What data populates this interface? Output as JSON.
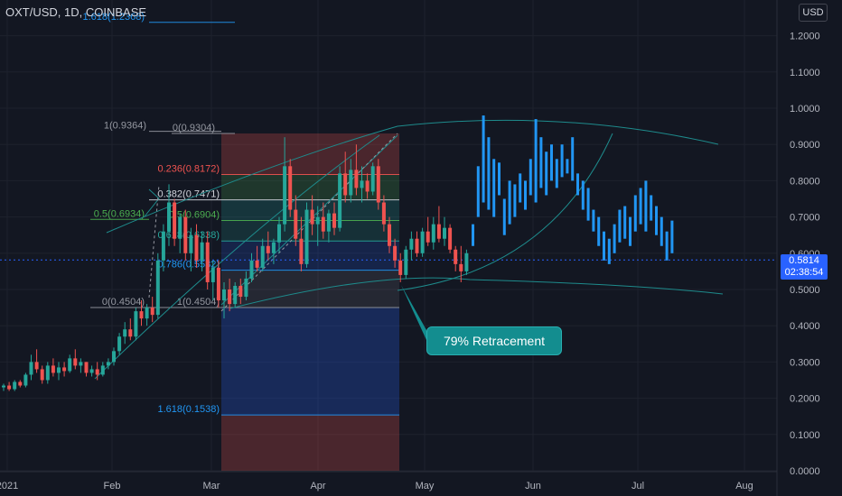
{
  "header": {
    "ticker": "OXT/USD, 1D, COINBASE",
    "currency_button": "USD"
  },
  "price_tag": {
    "price": "0.5814",
    "countdown": "02:38:54"
  },
  "callout": {
    "text": "79% Retracement"
  },
  "colors": {
    "background": "#131722",
    "up": "#26a69a",
    "down": "#ef5350",
    "projection": "#2196f3",
    "channel": "#1e8b8c",
    "grid": "#1e222d"
  },
  "chart_data": {
    "type": "candlestick",
    "title": "",
    "xlabel": "",
    "ylabel": "",
    "ylim": [
      0,
      1.25
    ],
    "y_ticks": [
      "1.2000",
      "1.1000",
      "1.0000",
      "0.9000",
      "0.8000",
      "0.7000",
      "0.6000",
      "0.5000",
      "0.4000",
      "0.3000",
      "0.2000",
      "0.1000",
      "0.0000"
    ],
    "x_ticks": [
      "2021",
      "Feb",
      "Mar",
      "Apr",
      "May",
      "Jun",
      "Jul",
      "Aug"
    ],
    "fib_retracement": {
      "levels": [
        {
          "label": "1(0.9364)",
          "value": 0.9364
        },
        {
          "label": "0(0.9304)",
          "value": 0.9304
        },
        {
          "label": "0.236(0.8172)",
          "value": 0.8172
        },
        {
          "label": "0.382(0.7471)",
          "value": 0.7471
        },
        {
          "label": "0.5(0.6934)",
          "value": 0.6934
        },
        {
          "label": "0.5(0.6904)",
          "value": 0.6904
        },
        {
          "label": "0.618(0.6338)",
          "value": 0.6338
        },
        {
          "label": "0.786(0.5532)",
          "value": 0.5532
        },
        {
          "label": "0(0.4504)",
          "value": 0.4504
        },
        {
          "label": "1(0.4504)",
          "value": 0.4504
        },
        {
          "label": "1.618(0.1538)",
          "value": 0.1538
        },
        {
          "label": "1.618(1.2368)",
          "value": 1.2368
        }
      ]
    },
    "candles": [
      [
        0.23,
        0.24,
        0.22,
        0.235
      ],
      [
        0.235,
        0.245,
        0.22,
        0.225
      ],
      [
        0.225,
        0.25,
        0.22,
        0.245
      ],
      [
        0.245,
        0.25,
        0.23,
        0.235
      ],
      [
        0.235,
        0.27,
        0.23,
        0.265
      ],
      [
        0.265,
        0.32,
        0.25,
        0.3
      ],
      [
        0.3,
        0.335,
        0.27,
        0.28
      ],
      [
        0.28,
        0.29,
        0.24,
        0.25
      ],
      [
        0.25,
        0.3,
        0.24,
        0.29
      ],
      [
        0.29,
        0.31,
        0.26,
        0.27
      ],
      [
        0.27,
        0.3,
        0.25,
        0.285
      ],
      [
        0.285,
        0.3,
        0.26,
        0.275
      ],
      [
        0.275,
        0.32,
        0.27,
        0.31
      ],
      [
        0.31,
        0.335,
        0.28,
        0.29
      ],
      [
        0.29,
        0.31,
        0.27,
        0.3
      ],
      [
        0.3,
        0.3,
        0.26,
        0.27
      ],
      [
        0.27,
        0.29,
        0.26,
        0.28
      ],
      [
        0.28,
        0.3,
        0.25,
        0.265
      ],
      [
        0.265,
        0.3,
        0.26,
        0.29
      ],
      [
        0.29,
        0.31,
        0.28,
        0.3
      ],
      [
        0.3,
        0.34,
        0.29,
        0.33
      ],
      [
        0.33,
        0.38,
        0.32,
        0.37
      ],
      [
        0.37,
        0.41,
        0.35,
        0.39
      ],
      [
        0.39,
        0.42,
        0.36,
        0.37
      ],
      [
        0.37,
        0.45,
        0.36,
        0.44
      ],
      [
        0.44,
        0.47,
        0.4,
        0.42
      ],
      [
        0.42,
        0.46,
        0.4,
        0.45
      ],
      [
        0.45,
        0.48,
        0.41,
        0.43
      ],
      [
        0.43,
        0.6,
        0.42,
        0.58
      ],
      [
        0.58,
        0.68,
        0.55,
        0.66
      ],
      [
        0.66,
        0.79,
        0.62,
        0.74
      ],
      [
        0.74,
        0.75,
        0.62,
        0.64
      ],
      [
        0.64,
        0.71,
        0.6,
        0.7
      ],
      [
        0.7,
        0.72,
        0.58,
        0.6
      ],
      [
        0.6,
        0.67,
        0.55,
        0.65
      ],
      [
        0.65,
        0.68,
        0.56,
        0.58
      ],
      [
        0.58,
        0.66,
        0.55,
        0.63
      ],
      [
        0.63,
        0.66,
        0.5,
        0.52
      ],
      [
        0.52,
        0.58,
        0.47,
        0.56
      ],
      [
        0.56,
        0.58,
        0.45,
        0.47
      ],
      [
        0.47,
        0.52,
        0.42,
        0.5
      ],
      [
        0.5,
        0.53,
        0.44,
        0.46
      ],
      [
        0.46,
        0.52,
        0.45,
        0.51
      ],
      [
        0.51,
        0.53,
        0.46,
        0.48
      ],
      [
        0.48,
        0.55,
        0.47,
        0.53
      ],
      [
        0.53,
        0.6,
        0.52,
        0.58
      ],
      [
        0.58,
        0.62,
        0.55,
        0.56
      ],
      [
        0.56,
        0.64,
        0.55,
        0.62
      ],
      [
        0.62,
        0.66,
        0.58,
        0.6
      ],
      [
        0.6,
        0.64,
        0.57,
        0.63
      ],
      [
        0.63,
        0.7,
        0.6,
        0.68
      ],
      [
        0.68,
        0.92,
        0.66,
        0.84
      ],
      [
        0.84,
        0.86,
        0.7,
        0.72
      ],
      [
        0.72,
        0.76,
        0.62,
        0.64
      ],
      [
        0.64,
        0.7,
        0.55,
        0.57
      ],
      [
        0.57,
        0.74,
        0.56,
        0.72
      ],
      [
        0.72,
        0.76,
        0.65,
        0.68
      ],
      [
        0.68,
        0.73,
        0.62,
        0.7
      ],
      [
        0.7,
        0.74,
        0.64,
        0.66
      ],
      [
        0.66,
        0.72,
        0.63,
        0.71
      ],
      [
        0.71,
        0.74,
        0.65,
        0.67
      ],
      [
        0.67,
        0.84,
        0.66,
        0.82
      ],
      [
        0.82,
        0.88,
        0.74,
        0.76
      ],
      [
        0.76,
        0.86,
        0.74,
        0.83
      ],
      [
        0.83,
        0.9,
        0.76,
        0.78
      ],
      [
        0.78,
        0.84,
        0.74,
        0.8
      ],
      [
        0.8,
        0.82,
        0.75,
        0.77
      ],
      [
        0.77,
        0.85,
        0.76,
        0.84
      ],
      [
        0.84,
        0.86,
        0.72,
        0.74
      ],
      [
        0.74,
        0.76,
        0.66,
        0.68
      ],
      [
        0.68,
        0.7,
        0.6,
        0.62
      ],
      [
        0.62,
        0.64,
        0.56,
        0.58
      ],
      [
        0.58,
        0.6,
        0.52,
        0.54
      ],
      [
        0.54,
        0.62,
        0.53,
        0.61
      ],
      [
        0.61,
        0.66,
        0.58,
        0.64
      ],
      [
        0.64,
        0.66,
        0.59,
        0.6
      ],
      [
        0.6,
        0.67,
        0.59,
        0.66
      ],
      [
        0.66,
        0.7,
        0.62,
        0.63
      ],
      [
        0.63,
        0.7,
        0.61,
        0.68
      ],
      [
        0.68,
        0.73,
        0.63,
        0.64
      ],
      [
        0.64,
        0.7,
        0.62,
        0.67
      ],
      [
        0.67,
        0.68,
        0.6,
        0.61
      ],
      [
        0.61,
        0.62,
        0.55,
        0.57
      ],
      [
        0.57,
        0.62,
        0.52,
        0.55
      ],
      [
        0.55,
        0.61,
        0.54,
        0.6
      ]
    ],
    "projection_bars": [
      [
        0.62,
        0.68
      ],
      [
        0.7,
        0.84
      ],
      [
        0.74,
        0.98
      ],
      [
        0.72,
        0.92
      ],
      [
        0.7,
        0.86
      ],
      [
        0.76,
        0.85
      ],
      [
        0.65,
        0.75
      ],
      [
        0.68,
        0.8
      ],
      [
        0.7,
        0.79
      ],
      [
        0.74,
        0.82
      ],
      [
        0.72,
        0.8
      ],
      [
        0.76,
        0.86
      ],
      [
        0.74,
        0.97
      ],
      [
        0.78,
        0.92
      ],
      [
        0.76,
        0.88
      ],
      [
        0.8,
        0.9
      ],
      [
        0.78,
        0.86
      ],
      [
        0.81,
        0.9
      ],
      [
        0.82,
        0.86
      ],
      [
        0.8,
        0.92
      ],
      [
        0.76,
        0.82
      ],
      [
        0.72,
        0.8
      ],
      [
        0.69,
        0.78
      ],
      [
        0.66,
        0.72
      ],
      [
        0.62,
        0.7
      ],
      [
        0.58,
        0.66
      ],
      [
        0.57,
        0.64
      ],
      [
        0.6,
        0.68
      ],
      [
        0.63,
        0.72
      ],
      [
        0.64,
        0.73
      ],
      [
        0.62,
        0.7
      ],
      [
        0.66,
        0.76
      ],
      [
        0.68,
        0.78
      ],
      [
        0.66,
        0.8
      ],
      [
        0.69,
        0.76
      ],
      [
        0.65,
        0.73
      ],
      [
        0.62,
        0.7
      ],
      [
        0.58,
        0.66
      ],
      [
        0.6,
        0.69
      ]
    ]
  }
}
